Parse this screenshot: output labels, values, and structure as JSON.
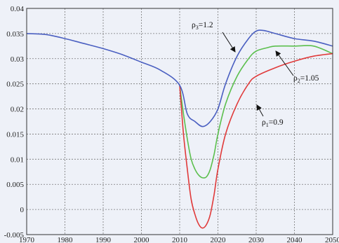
{
  "chart_data": {
    "type": "line",
    "title": "",
    "xlabel": "",
    "ylabel": "",
    "xlim": [
      1970,
      2050
    ],
    "ylim": [
      -0.005,
      0.04
    ],
    "grid": true,
    "x_ticks": [
      "1970",
      "1980",
      "1990",
      "2000",
      "2010",
      "2020",
      "2030",
      "2040",
      "2050"
    ],
    "y_ticks": [
      "-0.005",
      "0",
      "0.005",
      "0.01",
      "0.015",
      "0.02",
      "0.025",
      "0.03",
      "0.035",
      "0.04"
    ],
    "colors": {
      "blue": "#4a5fc1",
      "green": "#5bbf4d",
      "red": "#e03a3a",
      "grid": "#777777",
      "frame": "#333333"
    },
    "series": [
      {
        "name": "ρ3=1.2",
        "label_main": "ρ",
        "label_sub": "3",
        "label_rest": "=1.2",
        "color": "#4a5fc1",
        "x": [
          1970,
          1975,
          1980,
          1985,
          1990,
          1995,
          2000,
          2005,
          2010,
          2012,
          2014,
          2016,
          2018,
          2020,
          2022,
          2025,
          2028,
          2030,
          2032,
          2035,
          2040,
          2045,
          2050
        ],
        "y": [
          0.035,
          0.0348,
          0.034,
          0.033,
          0.032,
          0.0308,
          0.0293,
          0.0277,
          0.0247,
          0.019,
          0.0175,
          0.0165,
          0.0175,
          0.02,
          0.025,
          0.0305,
          0.034,
          0.0355,
          0.0356,
          0.035,
          0.034,
          0.0335,
          0.0325
        ]
      },
      {
        "name": "ρ2=1.05",
        "label_main": "ρ",
        "label_sub": "2",
        "label_rest": "=1.05",
        "color": "#5bbf4d",
        "x": [
          2010,
          2011,
          2012,
          2013,
          2014,
          2015,
          2016,
          2017,
          2018,
          2019,
          2020,
          2022,
          2025,
          2028,
          2030,
          2033,
          2035,
          2040,
          2045,
          2050
        ],
        "y": [
          0.0247,
          0.019,
          0.014,
          0.01,
          0.008,
          0.0068,
          0.0063,
          0.0065,
          0.008,
          0.011,
          0.015,
          0.021,
          0.0265,
          0.03,
          0.0315,
          0.0322,
          0.0325,
          0.0325,
          0.0325,
          0.031
        ]
      },
      {
        "name": "ρ1=0.9",
        "label_main": "ρ",
        "label_sub": "1",
        "label_rest": "=0.9",
        "color": "#e03a3a",
        "x": [
          2010,
          2011,
          2012,
          2013,
          2014,
          2015,
          2016,
          2017,
          2018,
          2019,
          2020,
          2022,
          2025,
          2028,
          2030,
          2035,
          2040,
          2045,
          2050
        ],
        "y": [
          0.0247,
          0.015,
          0.008,
          0.002,
          -0.001,
          -0.003,
          -0.0037,
          -0.003,
          -0.001,
          0.003,
          0.008,
          0.015,
          0.021,
          0.025,
          0.0265,
          0.0282,
          0.0295,
          0.0305,
          0.031
        ]
      }
    ]
  }
}
